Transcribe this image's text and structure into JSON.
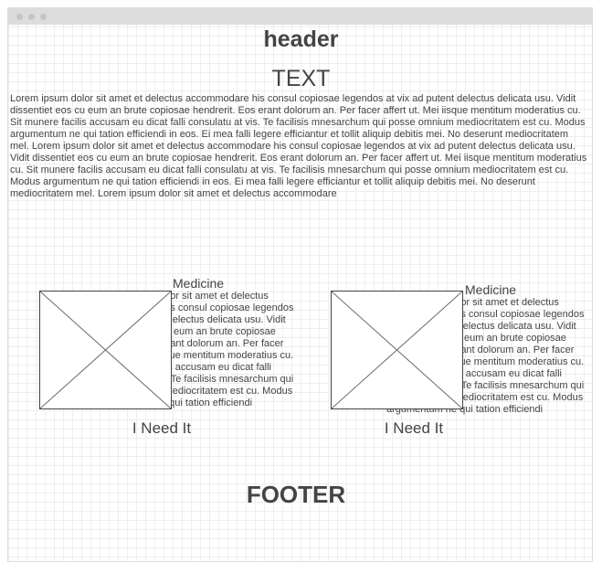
{
  "header": {
    "title": "header"
  },
  "section": {
    "heading": "TEXT",
    "body": "Lorem ipsum dolor sit amet et delectus accommodare his consul copiosae legendos at vix ad putent delectus delicata usu. Vidit dissentiet eos cu eum an brute copiosae hendrerit. Eos erant dolorum an. Per facer affert ut. Mei iisque mentitum moderatius cu. Sit munere facilis accusam eu dicat falli consulatu at vis. Te facilisis mnesarchum qui posse omnium mediocritatem est cu. Modus argumentum ne qui tation efficiendi in eos. Ei mea falli legere efficiantur et tollit aliquip debitis mei. No deserunt mediocritatem mel. Lorem ipsum dolor sit amet et delectus accommodare his consul copiosae legendos at vix ad putent delectus delicata usu. Vidit dissentiet eos cu eum an brute copiosae hendrerit. Eos erant dolorum an. Per facer affert ut. Mei iisque mentitum moderatius cu. Sit munere facilis accusam eu dicat falli consulatu at vis. Te facilisis mnesarchum qui posse omnium mediocritatem est cu. Modus argumentum ne qui tation efficiendi in eos. Ei mea falli legere efficiantur et tollit aliquip debitis mei. No deserunt mediocritatem mel. Lorem ipsum dolor sit amet et delectus accommodare"
  },
  "cards": [
    {
      "title": "Medicine",
      "text": "Lorem ipsum dolor sit amet et delectus accommodare his consul copiosae legendos at vix ad putent delectus delicata usu. Vidit dissentiet eos cu eum an brute copiosae hendrerit. Eos erant dolorum an. Per facer affert ut. Mei iisque mentitum moderatius cu. Sit munere facilis accusam eu dicat falli consulatu at vis. Te facilisis mnesarchum qui posse omnium mediocritatem est cu. Modus argumentum ne qui tation efficiendi",
      "button": "I Need It"
    },
    {
      "title": "Medicine",
      "text": "Lorem ipsum dolor sit amet et delectus accommodare his consul copiosae legendos at vix ad putent delectus delicata usu. Vidit dissentiet eos cu eum an brute copiosae hendrerit. Eos erant dolorum an. Per facer affert ut. Mei iisque mentitum moderatius cu. Sit munere facilis accusam eu dicat falli consulatu at vis. Te facilisis mnesarchum qui posse omnium mediocritatem est cu. Modus argumentum ne qui tation efficiendi",
      "button": "I Need It"
    }
  ],
  "footer": {
    "title": "FOOTER"
  }
}
